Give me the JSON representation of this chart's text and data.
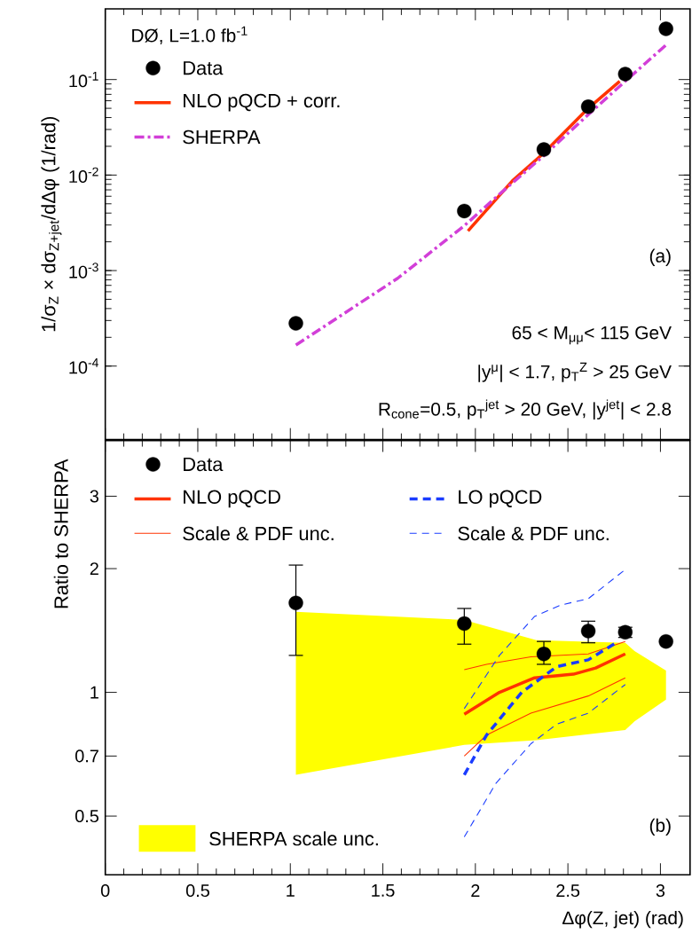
{
  "chart_data": [
    {
      "type": "scatter",
      "ylabel": "1/σ$_{Z}$ × dσ$_{Z+jet}$/dΔφ (1/rad)",
      "log": "y",
      "legend": "top left",
      "tick_labels": "y",
      "xlim": [
        0,
        3.16
      ],
      "ylim": [
        1.7e-05,
        0.55
      ],
      "xticks": [
        0,
        0.5,
        1,
        1.5,
        2,
        2.5,
        3
      ],
      "yticks": [
        {
          "value": 0.0001,
          "label": "10$^{-4}$"
        },
        {
          "value": 0.001,
          "label": "10$^{-3}$"
        },
        {
          "value": 0.01,
          "label": "10$^{-2}$"
        },
        {
          "value": 0.1,
          "label": "10$^{-1}$"
        }
      ],
      "annotations": [
        "DØ, L=1.0 fb$^{-1}$",
        "(a)",
        "65 < M$_{μμ}$< 115 GeV",
        "|y$^{μ}$| < 1.7, p$_{T}$$^{Z}$ > 25 GeV",
        "R$_{cone}$=0.5,  p$_{T}$$^{jet}$ > 20 GeV,  |y$^{jet}$| < 2.8"
      ],
      "series": [
        {
          "name": "Data",
          "marker": "circle",
          "color": "#000000",
          "x": [
            1.03,
            1.94,
            2.37,
            2.61,
            2.81,
            3.03
          ],
          "values": [
            0.00028,
            0.0042,
            0.0185,
            0.052,
            0.114,
            0.34
          ]
        },
        {
          "name": "NLO pQCD + corr.",
          "type": "line",
          "line_style": "solid",
          "color": "#ff3300",
          "x": [
            1.96,
            2.2,
            2.37,
            2.61,
            2.78
          ],
          "values": [
            0.0026,
            0.0087,
            0.017,
            0.05,
            0.096
          ]
        },
        {
          "name": "SHERPA",
          "type": "line",
          "line_style": "dashdot",
          "color": "#d23fd8",
          "x": [
            1.03,
            1.58,
            1.94,
            2.13,
            2.37,
            2.61,
            2.82,
            3.03
          ],
          "values": [
            0.000166,
            0.00083,
            0.00295,
            0.0063,
            0.016,
            0.043,
            0.1,
            0.23
          ]
        }
      ]
    },
    {
      "type": "scatter",
      "xlabel": "Δφ(Z, jet) (rad)",
      "ylabel": "Ratio to SHERPA",
      "log": "y",
      "legend": "top left",
      "xlim": [
        0,
        3.16
      ],
      "ylim": [
        0.36,
        4.1
      ],
      "xticks": [
        0,
        0.5,
        1,
        1.5,
        2,
        2.5,
        3
      ],
      "yticks": [
        0.5,
        0.7,
        1,
        2,
        3
      ],
      "annotations": [
        "(b)"
      ],
      "series": [
        {
          "name": "SHERPA scale unc.",
          "type": "area",
          "color": "#ffff00",
          "x": [
            1.03,
            1.94,
            2.33,
            2.81,
            2.86,
            3.03
          ],
          "values": [
            null,
            null,
            null,
            null,
            null,
            null
          ],
          "lower": [
            0.63,
            0.745,
            0.765,
            0.81,
            0.85,
            0.96
          ],
          "upper": [
            1.57,
            1.5,
            1.34,
            1.32,
            1.26,
            1.13
          ]
        },
        {
          "name": "Data",
          "marker": "circle",
          "color": "#000000",
          "x": [
            1.03,
            1.94,
            2.37,
            2.61,
            2.81,
            3.03
          ],
          "values": [
            1.65,
            1.47,
            1.24,
            1.41,
            1.4,
            1.33
          ],
          "errors": [
            [
              1.23,
              2.04
            ],
            [
              1.31,
              1.6
            ],
            [
              1.17,
              1.33
            ],
            [
              1.32,
              1.49
            ],
            [
              1.36,
              1.44
            ],
            null
          ]
        },
        {
          "name": "NLO pQCD",
          "type": "line",
          "line_style": "solid",
          "color": "#ff3300",
          "x": [
            1.94,
            2.13,
            2.32,
            2.53,
            2.65,
            2.81
          ],
          "values": [
            0.885,
            1.0,
            1.085,
            1.107,
            1.146,
            1.24
          ]
        },
        {
          "name": "Scale & PDF unc.",
          "type": "line",
          "line_style": "solid",
          "color": "#ff3300",
          "x": [
            1.94,
            2.06,
            2.3,
            2.61,
            2.81
          ],
          "values": [
            1.135,
            1.17,
            1.22,
            1.24,
            1.33
          ]
        },
        {
          "type": "line",
          "line_style": "solid",
          "color": "#ff3300",
          "x": [
            1.94,
            2.06,
            2.3,
            2.61,
            2.81
          ],
          "values": [
            0.7,
            0.787,
            0.89,
            0.98,
            1.085
          ]
        },
        {
          "name": "LO pQCD",
          "type": "line",
          "line_style": "dashed",
          "color": "#1a3cff",
          "x": [
            1.94,
            2.06,
            2.25,
            2.44,
            2.61,
            2.76
          ],
          "values": [
            0.63,
            0.787,
            1.0,
            1.155,
            1.2,
            1.32
          ]
        },
        {
          "name": "Scale & PDF unc.",
          "type": "line",
          "line_style": "dashed",
          "color": "#1a3cff",
          "x": [
            1.94,
            2.13,
            2.32,
            2.46,
            2.61,
            2.81
          ],
          "values": [
            0.913,
            1.23,
            1.53,
            1.63,
            1.69,
            1.99
          ]
        },
        {
          "type": "line",
          "line_style": "dashed",
          "color": "#1a3cff",
          "x": [
            1.94,
            2.11,
            2.3,
            2.44,
            2.61,
            2.81
          ],
          "values": [
            0.445,
            0.6,
            0.75,
            0.837,
            0.89,
            1.045
          ]
        }
      ]
    }
  ]
}
